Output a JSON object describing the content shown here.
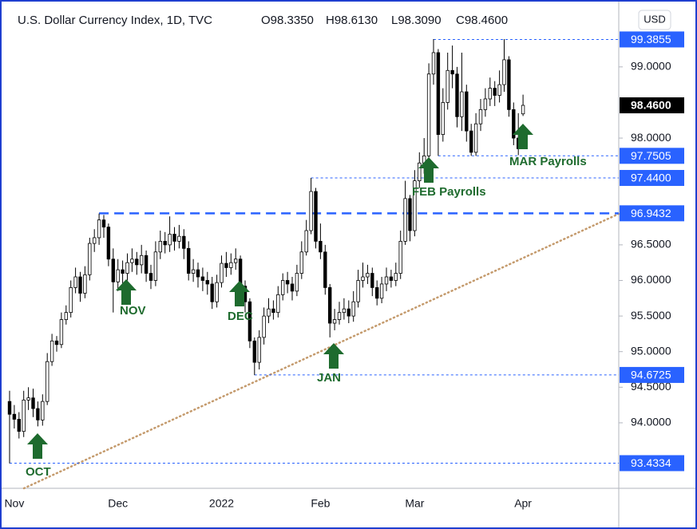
{
  "chart_data": {
    "type": "candlestick",
    "title": "U.S. Dollar Currency Index, 1D, TVC",
    "ohlc_labels": [
      "O98.3350",
      "H98.6130",
      "L98.3090",
      "C98.4600"
    ],
    "currency": "USD",
    "categories": [
      null,
      "Nov",
      null,
      null,
      null,
      null,
      null,
      null,
      null,
      null,
      null,
      null,
      null,
      null,
      null,
      null,
      null,
      null,
      null,
      null,
      null,
      null,
      null,
      "Dec",
      null,
      null,
      null,
      null,
      null,
      null,
      null,
      null,
      null,
      null,
      null,
      null,
      null,
      null,
      null,
      null,
      null,
      null,
      null,
      null,
      null,
      "2022",
      null,
      null,
      null,
      null,
      null,
      null,
      null,
      null,
      null,
      null,
      null,
      null,
      null,
      null,
      null,
      null,
      null,
      null,
      null,
      null,
      "Feb",
      null,
      null,
      null,
      null,
      null,
      null,
      null,
      null,
      null,
      null,
      null,
      null,
      null,
      null,
      null,
      null,
      null,
      null,
      null,
      "Mar",
      null,
      null,
      null,
      null,
      null,
      null,
      null,
      null,
      null,
      null,
      null,
      null,
      null,
      null,
      null,
      null,
      null,
      null,
      null,
      null,
      null,
      null,
      "Apr"
    ],
    "open": [
      94.3,
      94.12,
      94.05,
      93.88,
      94.32,
      94.35,
      94.2,
      94.04,
      94.3,
      94.86,
      95.15,
      95.1,
      95.45,
      95.55,
      95.9,
      96.05,
      95.82,
      96.08,
      96.52,
      96.6,
      96.85,
      96.75,
      96.3,
      95.98,
      96.15,
      96.1,
      96.25,
      96.3,
      96.22,
      96.35,
      96.1,
      96.0,
      96.4,
      96.55,
      96.5,
      96.65,
      96.55,
      96.62,
      96.45,
      96.1,
      96.15,
      96.05,
      96.0,
      95.95,
      95.7,
      95.97,
      96.24,
      96.18,
      96.25,
      96.3,
      95.92,
      95.7,
      95.15,
      94.85,
      95.2,
      95.5,
      95.6,
      95.55,
      95.8,
      96.0,
      95.95,
      95.85,
      96.1,
      96.4,
      96.7,
      97.25,
      96.55,
      96.4,
      95.9,
      95.4,
      95.45,
      95.55,
      95.6,
      95.5,
      95.7,
      96.0,
      96.05,
      96.1,
      95.9,
      95.75,
      95.95,
      96.05,
      96.0,
      96.1,
      96.55,
      97.15,
      96.7,
      97.4,
      97.65,
      97.75,
      98.9,
      99.2,
      98.05,
      98.5,
      98.95,
      98.9,
      98.3,
      98.65,
      98.1,
      97.8,
      98.2,
      98.4,
      98.55,
      98.7,
      98.6,
      98.75,
      99.1,
      98.4,
      98.0,
      98.34
    ],
    "high": [
      94.45,
      94.25,
      94.15,
      94.45,
      94.5,
      94.48,
      94.3,
      94.4,
      94.98,
      95.25,
      95.22,
      95.55,
      95.65,
      96.0,
      96.18,
      96.12,
      96.2,
      96.6,
      96.72,
      96.94,
      96.92,
      96.8,
      96.45,
      96.3,
      96.28,
      96.38,
      96.45,
      96.4,
      96.5,
      96.42,
      96.22,
      96.55,
      96.7,
      96.68,
      96.9,
      96.75,
      96.78,
      96.72,
      96.55,
      96.3,
      96.25,
      96.18,
      96.12,
      96.05,
      96.08,
      96.35,
      96.4,
      96.38,
      96.45,
      96.35,
      96.0,
      95.75,
      95.2,
      95.3,
      95.62,
      95.75,
      95.72,
      95.92,
      96.1,
      96.12,
      96.05,
      96.22,
      96.55,
      96.85,
      97.44,
      97.3,
      96.8,
      96.5,
      95.95,
      95.6,
      95.7,
      95.75,
      95.72,
      95.85,
      96.15,
      96.25,
      96.22,
      96.18,
      96.0,
      96.05,
      96.18,
      96.15,
      96.25,
      96.7,
      97.4,
      97.2,
      97.55,
      97.8,
      98.0,
      99.05,
      99.39,
      99.25,
      98.7,
      99.2,
      99.3,
      99.0,
      99.2,
      98.75,
      98.2,
      98.35,
      98.55,
      98.7,
      98.85,
      98.8,
      98.95,
      99.39,
      99.15,
      98.5,
      98.35,
      98.61
    ],
    "low": [
      93.43,
      93.92,
      93.78,
      93.8,
      94.18,
      94.08,
      93.95,
      93.96,
      94.25,
      94.8,
      95.0,
      95.05,
      95.38,
      95.48,
      95.82,
      95.7,
      95.75,
      96.0,
      96.4,
      96.5,
      96.6,
      96.2,
      95.55,
      95.85,
      95.95,
      96.0,
      96.12,
      96.08,
      96.1,
      95.98,
      95.88,
      95.92,
      96.3,
      96.38,
      96.4,
      96.42,
      96.45,
      96.3,
      96.0,
      95.98,
      95.9,
      95.85,
      95.8,
      95.6,
      95.62,
      95.9,
      96.05,
      96.08,
      96.15,
      95.85,
      95.55,
      95.05,
      94.67,
      94.75,
      95.1,
      95.4,
      95.45,
      95.48,
      95.72,
      95.82,
      95.72,
      95.78,
      96.02,
      96.35,
      96.65,
      96.45,
      96.3,
      95.8,
      95.2,
      95.3,
      95.38,
      95.45,
      95.4,
      95.42,
      95.62,
      95.9,
      95.95,
      95.78,
      95.65,
      95.68,
      95.85,
      95.9,
      95.92,
      96.02,
      96.5,
      96.55,
      96.62,
      97.3,
      97.5,
      97.7,
      98.75,
      97.75,
      97.95,
      98.4,
      98.7,
      98.15,
      98.1,
      97.95,
      97.75,
      97.75,
      98.1,
      98.3,
      98.45,
      98.45,
      98.5,
      98.65,
      98.3,
      97.9,
      97.76,
      98.31
    ],
    "close": [
      94.12,
      94.05,
      93.88,
      94.32,
      94.35,
      94.2,
      94.04,
      94.3,
      94.86,
      95.15,
      95.1,
      95.45,
      95.55,
      95.9,
      96.05,
      95.82,
      96.08,
      96.52,
      96.6,
      96.85,
      96.75,
      96.3,
      95.98,
      96.15,
      96.1,
      96.25,
      96.3,
      96.22,
      96.35,
      96.1,
      96.0,
      96.4,
      96.55,
      96.5,
      96.65,
      96.55,
      96.62,
      96.45,
      96.1,
      96.15,
      96.05,
      96.0,
      95.95,
      95.7,
      95.97,
      96.24,
      96.18,
      96.25,
      96.3,
      95.92,
      95.7,
      95.15,
      94.85,
      95.2,
      95.5,
      95.6,
      95.55,
      95.8,
      96.0,
      95.95,
      95.85,
      96.1,
      96.4,
      96.7,
      97.25,
      96.55,
      96.4,
      95.9,
      95.4,
      95.45,
      95.55,
      95.6,
      95.5,
      95.7,
      96.0,
      96.05,
      96.1,
      95.9,
      95.75,
      95.95,
      96.05,
      96.0,
      96.1,
      96.55,
      97.15,
      96.7,
      97.4,
      97.65,
      97.75,
      98.9,
      99.2,
      98.05,
      98.5,
      98.95,
      98.9,
      98.3,
      98.65,
      98.1,
      97.8,
      98.2,
      98.4,
      98.55,
      98.7,
      98.6,
      98.75,
      99.1,
      98.4,
      98.0,
      97.85,
      98.46
    ],
    "up_color": "#ffffff",
    "down_color": "#000000",
    "wick_color": "#000000",
    "ylim": [
      93.08,
      99.85
    ],
    "yticks": [
      {
        "value": 99,
        "label": "99.0000"
      },
      {
        "value": 98,
        "label": "98.0000"
      },
      {
        "value": 96.5,
        "label": "96.5000"
      },
      {
        "value": 96,
        "label": "96.0000"
      },
      {
        "value": 95.5,
        "label": "95.5000"
      },
      {
        "value": 95,
        "label": "95.0000"
      },
      {
        "value": 94.5,
        "label": "94.5000"
      },
      {
        "value": 94,
        "label": "94.0000"
      }
    ],
    "levels": [
      {
        "value": 99.3855,
        "label": "99.3855",
        "style": "dashed"
      },
      {
        "value": 97.7505,
        "label": "97.7505",
        "style": "dashed"
      },
      {
        "value": 97.44,
        "label": "97.4400",
        "style": "dashed"
      },
      {
        "value": 96.9432,
        "label": "96.9432",
        "style": "thick-dashed"
      },
      {
        "value": 94.6725,
        "label": "94.6725",
        "style": "dashed"
      },
      {
        "value": 93.4334,
        "label": "93.4334",
        "style": "dashed"
      }
    ],
    "level_color": "#2962ff",
    "last_price": {
      "value": 98.46,
      "label": "98.4600"
    },
    "annotations": [
      "OCT",
      "NOV",
      "DEC",
      "JAN",
      "FEB Payrolls",
      "MAR Payrolls"
    ],
    "annotation_color": "#1e6b2e"
  }
}
